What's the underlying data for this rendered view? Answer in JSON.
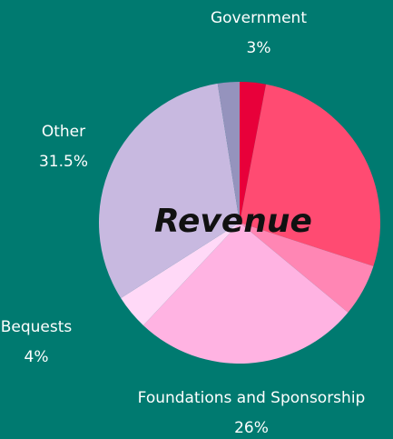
{
  "chart_data": {
    "type": "pie",
    "title": "Revenue",
    "categories": [
      "Government",
      null,
      null,
      "Foundations and Sponsorship",
      "Bequests",
      "Other",
      null
    ],
    "values": [
      3,
      27,
      6,
      26,
      4,
      31.5,
      2.5
    ],
    "value_labels": [
      "3%",
      null,
      null,
      "26%",
      "4%",
      "31.5%",
      null
    ],
    "colors": [
      "#e8003a",
      "#ff4b72",
      "#ff86b4",
      "#ffb3e2",
      "#ffd9f7",
      "#c8b9e0",
      "#9593bd"
    ]
  }
}
